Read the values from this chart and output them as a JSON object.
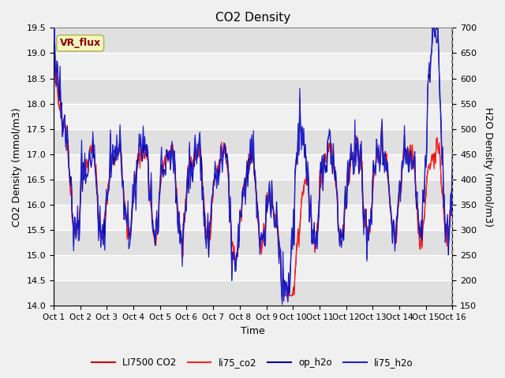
{
  "title": "CO2 Density",
  "xlabel": "Time",
  "ylabel_left": "CO2 Density (mmol/m3)",
  "ylabel_right": "H2O Density (mmol/m3)",
  "ylim_left": [
    14.0,
    19.5
  ],
  "ylim_right": [
    150,
    700
  ],
  "yticks_left": [
    14.0,
    14.5,
    15.0,
    15.5,
    16.0,
    16.5,
    17.0,
    17.5,
    18.0,
    18.5,
    19.0,
    19.5
  ],
  "yticks_right": [
    150,
    200,
    250,
    300,
    350,
    400,
    450,
    500,
    550,
    600,
    650,
    700
  ],
  "xtick_labels": [
    "Oct 1",
    "Oct 2",
    "Oct 3",
    "Oct 4",
    "Oct 5",
    "Oct 6",
    "Oct 7",
    "Oct 8",
    "Oct 9",
    "Oct 10",
    "Oct 11",
    "Oct 12",
    "Oct 13",
    "Oct 14",
    "Oct 15",
    "Oct 16"
  ],
  "legend_labels": [
    "LI7500 CO2",
    "li75_co2",
    "op_h2o",
    "li75_h2o"
  ],
  "color_co2_1": "#cc0000",
  "color_co2_2": "#ff2222",
  "color_h2o_1": "#000099",
  "color_h2o_2": "#2222cc",
  "vr_flux_label": "VR_flux",
  "fig_facecolor": "#f0f0f0",
  "plot_facecolor": "#ffffff",
  "band_color_dark": "#e0e0e0",
  "band_color_light": "#f0f0f0"
}
